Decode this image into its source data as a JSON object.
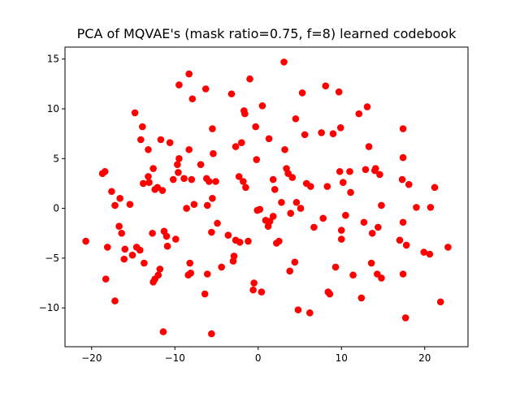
{
  "chart_data": {
    "type": "scatter",
    "title": "PCA of MQVAE's (mask ratio=0.75, f=8) learned codebook",
    "xlabel": "",
    "ylabel": "",
    "xlim": [
      -23.2,
      25.2
    ],
    "ylim": [
      -13.9,
      16.2
    ],
    "xticks": [
      -20,
      -10,
      0,
      10,
      20
    ],
    "yticks": [
      -10,
      -5,
      0,
      5,
      10,
      15
    ],
    "grid": false,
    "legend": "none",
    "marker_color": "#ff0000",
    "points": [
      [
        -20.7,
        -3.3
      ],
      [
        -18.7,
        3.5
      ],
      [
        -18.4,
        3.7
      ],
      [
        -18.3,
        -7.1
      ],
      [
        -18.1,
        -3.9
      ],
      [
        -17.6,
        1.7
      ],
      [
        -17.2,
        -9.3
      ],
      [
        -17.2,
        0.3
      ],
      [
        -16.7,
        -1.8
      ],
      [
        -16.6,
        1.0
      ],
      [
        -16.4,
        -2.5
      ],
      [
        -16.1,
        -5.1
      ],
      [
        -16.0,
        -4.1
      ],
      [
        -15.4,
        0.4
      ],
      [
        -15.1,
        -4.7
      ],
      [
        -14.8,
        9.6
      ],
      [
        -14.6,
        -3.9
      ],
      [
        -14.2,
        -4.2
      ],
      [
        -14.1,
        6.9
      ],
      [
        -13.9,
        8.2
      ],
      [
        -13.8,
        2.5
      ],
      [
        -13.7,
        -5.5
      ],
      [
        -13.2,
        3.2
      ],
      [
        -13.2,
        5.9
      ],
      [
        -13.1,
        2.6
      ],
      [
        -12.6,
        4.0
      ],
      [
        -12.4,
        1.9
      ],
      [
        -12.1,
        2.1
      ],
      [
        -12.6,
        -7.4
      ],
      [
        -12.7,
        -2.5
      ],
      [
        -12.4,
        -7.1
      ],
      [
        -12.0,
        -6.7
      ],
      [
        -11.8,
        -6.1
      ],
      [
        -11.7,
        6.9
      ],
      [
        -11.5,
        1.8
      ],
      [
        -11.4,
        -12.4
      ],
      [
        -11.3,
        -2.3
      ],
      [
        -11.0,
        -2.8
      ],
      [
        -10.9,
        -3.8
      ],
      [
        -10.6,
        6.6
      ],
      [
        -10.2,
        2.9
      ],
      [
        -9.9,
        -3.1
      ],
      [
        -9.7,
        4.4
      ],
      [
        -9.6,
        3.6
      ],
      [
        -9.5,
        12.4
      ],
      [
        -9.5,
        5.0
      ],
      [
        -8.9,
        3.0
      ],
      [
        -8.6,
        0.0
      ],
      [
        -8.4,
        -6.7
      ],
      [
        -8.3,
        13.5
      ],
      [
        -8.2,
        -5.5
      ],
      [
        -8.3,
        5.9
      ],
      [
        -8.1,
        -6.5
      ],
      [
        -8.0,
        2.9
      ],
      [
        -7.9,
        11.0
      ],
      [
        -7.7,
        0.4
      ],
      [
        -6.9,
        4.4
      ],
      [
        -6.4,
        -8.6
      ],
      [
        -6.2,
        3.0
      ],
      [
        -6.1,
        -6.6
      ],
      [
        -6.3,
        12.0
      ],
      [
        -6.1,
        0.3
      ],
      [
        -5.9,
        2.7
      ],
      [
        -5.6,
        -12.6
      ],
      [
        -5.5,
        1.0
      ],
      [
        -5.6,
        -2.4
      ],
      [
        -5.5,
        8.0
      ],
      [
        -5.4,
        5.5
      ],
      [
        -5.1,
        2.7
      ],
      [
        -4.9,
        -1.5
      ],
      [
        -4.4,
        -5.9
      ],
      [
        -3.6,
        -2.7
      ],
      [
        -3.0,
        -5.3
      ],
      [
        -3.2,
        11.5
      ],
      [
        -2.9,
        -4.8
      ],
      [
        -2.7,
        6.2
      ],
      [
        -2.7,
        -3.2
      ],
      [
        -2.3,
        3.2
      ],
      [
        -2.2,
        -3.4
      ],
      [
        -2.0,
        6.6
      ],
      [
        -1.8,
        2.7
      ],
      [
        -1.7,
        9.8
      ],
      [
        -1.6,
        9.5
      ],
      [
        -1.5,
        2.1
      ],
      [
        -1.2,
        -3.3
      ],
      [
        -1.0,
        13.0
      ],
      [
        -0.6,
        -8.2
      ],
      [
        -0.5,
        -7.5
      ],
      [
        -0.3,
        8.2
      ],
      [
        -0.2,
        4.9
      ],
      [
        -0.1,
        -0.2
      ],
      [
        0.2,
        -0.1
      ],
      [
        0.4,
        -8.4
      ],
      [
        0.5,
        10.3
      ],
      [
        0.9,
        -1.2
      ],
      [
        1.2,
        -1.8
      ],
      [
        1.3,
        7.0
      ],
      [
        1.4,
        -1.3
      ],
      [
        1.8,
        -0.8
      ],
      [
        1.8,
        2.9
      ],
      [
        2.0,
        1.9
      ],
      [
        2.2,
        -3.5
      ],
      [
        2.5,
        -3.3
      ],
      [
        2.8,
        0.6
      ],
      [
        3.1,
        14.7
      ],
      [
        3.2,
        5.9
      ],
      [
        3.4,
        4.0
      ],
      [
        3.6,
        3.5
      ],
      [
        3.8,
        -6.3
      ],
      [
        3.9,
        -0.5
      ],
      [
        4.1,
        3.1
      ],
      [
        4.4,
        -5.4
      ],
      [
        4.5,
        9.0
      ],
      [
        4.6,
        0.6
      ],
      [
        4.8,
        -10.2
      ],
      [
        5.1,
        0.0
      ],
      [
        5.3,
        11.6
      ],
      [
        5.6,
        7.4
      ],
      [
        5.8,
        2.5
      ],
      [
        6.2,
        -10.5
      ],
      [
        6.3,
        2.2
      ],
      [
        6.7,
        -1.9
      ],
      [
        7.6,
        7.6
      ],
      [
        7.8,
        -1.0
      ],
      [
        8.1,
        12.3
      ],
      [
        8.3,
        2.2
      ],
      [
        8.4,
        -8.4
      ],
      [
        8.6,
        -8.6
      ],
      [
        9.0,
        7.5
      ],
      [
        9.3,
        -5.9
      ],
      [
        9.7,
        11.7
      ],
      [
        9.8,
        3.7
      ],
      [
        9.9,
        8.1
      ],
      [
        10.0,
        -2.2
      ],
      [
        10.0,
        -3.1
      ],
      [
        10.2,
        2.6
      ],
      [
        10.5,
        -0.7
      ],
      [
        11.0,
        3.7
      ],
      [
        11.1,
        1.6
      ],
      [
        11.4,
        -6.7
      ],
      [
        12.1,
        9.5
      ],
      [
        12.4,
        -9.0
      ],
      [
        12.7,
        -1.4
      ],
      [
        12.9,
        3.9
      ],
      [
        13.1,
        10.2
      ],
      [
        13.3,
        6.2
      ],
      [
        13.6,
        -5.5
      ],
      [
        13.7,
        -2.5
      ],
      [
        14.0,
        3.8
      ],
      [
        14.1,
        4.0
      ],
      [
        14.3,
        -6.6
      ],
      [
        14.4,
        -1.9
      ],
      [
        14.6,
        3.4
      ],
      [
        14.8,
        0.3
      ],
      [
        14.8,
        -7.0
      ],
      [
        17.0,
        -3.2
      ],
      [
        17.3,
        2.9
      ],
      [
        17.4,
        8.0
      ],
      [
        17.4,
        5.1
      ],
      [
        17.4,
        -1.4
      ],
      [
        17.4,
        -6.6
      ],
      [
        17.7,
        -11.0
      ],
      [
        17.8,
        -3.7
      ],
      [
        18.1,
        2.4
      ],
      [
        19.0,
        0.1
      ],
      [
        19.9,
        -4.4
      ],
      [
        20.6,
        -4.6
      ],
      [
        20.7,
        0.1
      ],
      [
        21.2,
        2.1
      ],
      [
        21.9,
        -9.4
      ],
      [
        22.8,
        -3.9
      ]
    ]
  }
}
